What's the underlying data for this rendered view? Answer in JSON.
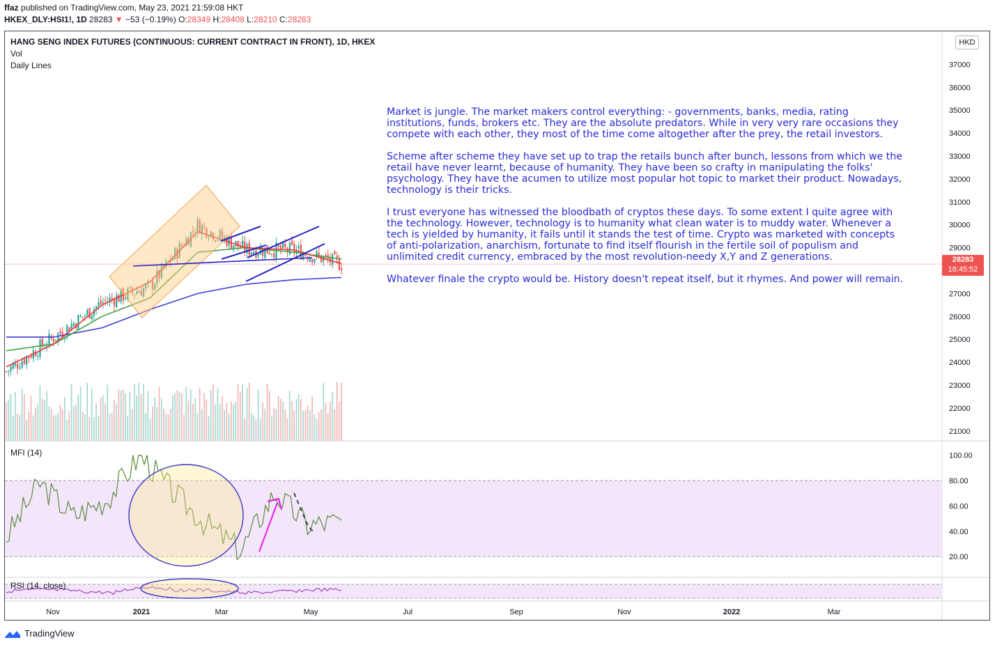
{
  "header": {
    "publisher": "ffaz",
    "published_text": "published on TradingView.com, May 23, 2021 21:59:08 HKT",
    "symbol": "HKEX_DLY:HSI1!, 1D",
    "last": "28283",
    "change": "−53 (−0.19%)",
    "open_label": "O:",
    "open": "28349",
    "high_label": "H:",
    "high": "28408",
    "low_label": "L:",
    "low": "28210",
    "close_label": "C:",
    "close": "28283"
  },
  "legend": {
    "title": "HANG SENG INDEX FUTURES (CONTINUOUS: CURRENT CONTRACT IN FRONT), 1D, HKEX",
    "vol": "Vol",
    "daily_lines": "Daily Lines",
    "mfi": "MFI (14)",
    "rsi": "RSI (14, close)"
  },
  "price_axis": {
    "unit": "HKD",
    "ticks": [
      "37000",
      "36000",
      "35000",
      "34000",
      "33000",
      "32000",
      "31000",
      "30000",
      "29000",
      "27000",
      "26000",
      "25000",
      "24000",
      "23000",
      "22000",
      "21000"
    ],
    "last_price": "28283",
    "countdown": "18:45:52"
  },
  "mfi_axis": {
    "ticks": [
      "100.00",
      "80.00",
      "60.00",
      "40.00",
      "20.00"
    ]
  },
  "time_axis": {
    "ticks": [
      "Nov",
      "2021",
      "Mar",
      "May",
      "Jul",
      "Sep",
      "Nov",
      "2022",
      "Mar"
    ]
  },
  "annotation": {
    "paragraphs": [
      "Market is jungle. The market makers control everything: - governments, banks, media, rating institutions, funds, brokers etc. They are the absolute predators. While in very very rare occasions they compete with each other, they most of the time come altogether after the prey, the retail investors.",
      "Scheme after scheme they have set up to trap the retails bunch after bunch, lessons from which we the retail have never learnt, because of humanity.  They have been so crafty in manipulating the folks' psychology. They have the acumen to utilize most popular hot topic to market their product. Nowadays, technology is their tricks.",
      "I trust everyone has witnessed the bloodbath of cryptos these days. To some extent I quite agree with the technology. However, technology is to humanity what clean water is to muddy water. Whenever a tech is yielded by humanity, it fails until it stands the test of time. Crypto was marketed with concepts of anti-polarization, anarchism, fortunate to find itself flourish in the fertile soil of populism and unlimited credit currency, embraced by the most revolution-needy X,Y and Z generations.",
      "Whatever finale the crypto would be. History doesn't repeat itself, but it rhymes. And power will remain."
    ]
  },
  "footer": {
    "brand": "TradingView"
  },
  "colors": {
    "up": "#26a69a",
    "down": "#ef5350",
    "ma_fast": "#e53935",
    "ma_mid": "#43a047",
    "ma_slow": "#3f3fd6",
    "note": "#2a2ad6",
    "band": "#f3e6fb",
    "mfi": "#5b8a3a",
    "rsi": "#8e24aa"
  },
  "chart_data": {
    "type": "candlestick",
    "title": "HANG SENG INDEX FUTURES (CONTINUOUS: CURRENT CONTRACT IN FRONT), 1D, HKEX",
    "x": [
      "Oct 2020",
      "Nov 2020",
      "Dec 2020",
      "Jan 2021",
      "Feb 2021",
      "Mar 2021",
      "Apr 2021",
      "May 2021"
    ],
    "close": [
      23600,
      25100,
      26600,
      27300,
      30000,
      28900,
      28900,
      28283
    ],
    "ma_fast": [
      23800,
      24800,
      26500,
      27500,
      29700,
      29000,
      28900,
      28300
    ],
    "ma_mid": [
      24500,
      24800,
      26000,
      26800,
      28800,
      29000,
      28800,
      28500
    ],
    "ma_slow": [
      25100,
      25100,
      25500,
      26300,
      27000,
      27400,
      27600,
      27700
    ],
    "ylim": [
      20500,
      37500
    ],
    "mfi_values": [
      35,
      78,
      52,
      65,
      100,
      70,
      45,
      25,
      70,
      45,
      48
    ],
    "mfi_band": [
      20,
      80
    ]
  }
}
